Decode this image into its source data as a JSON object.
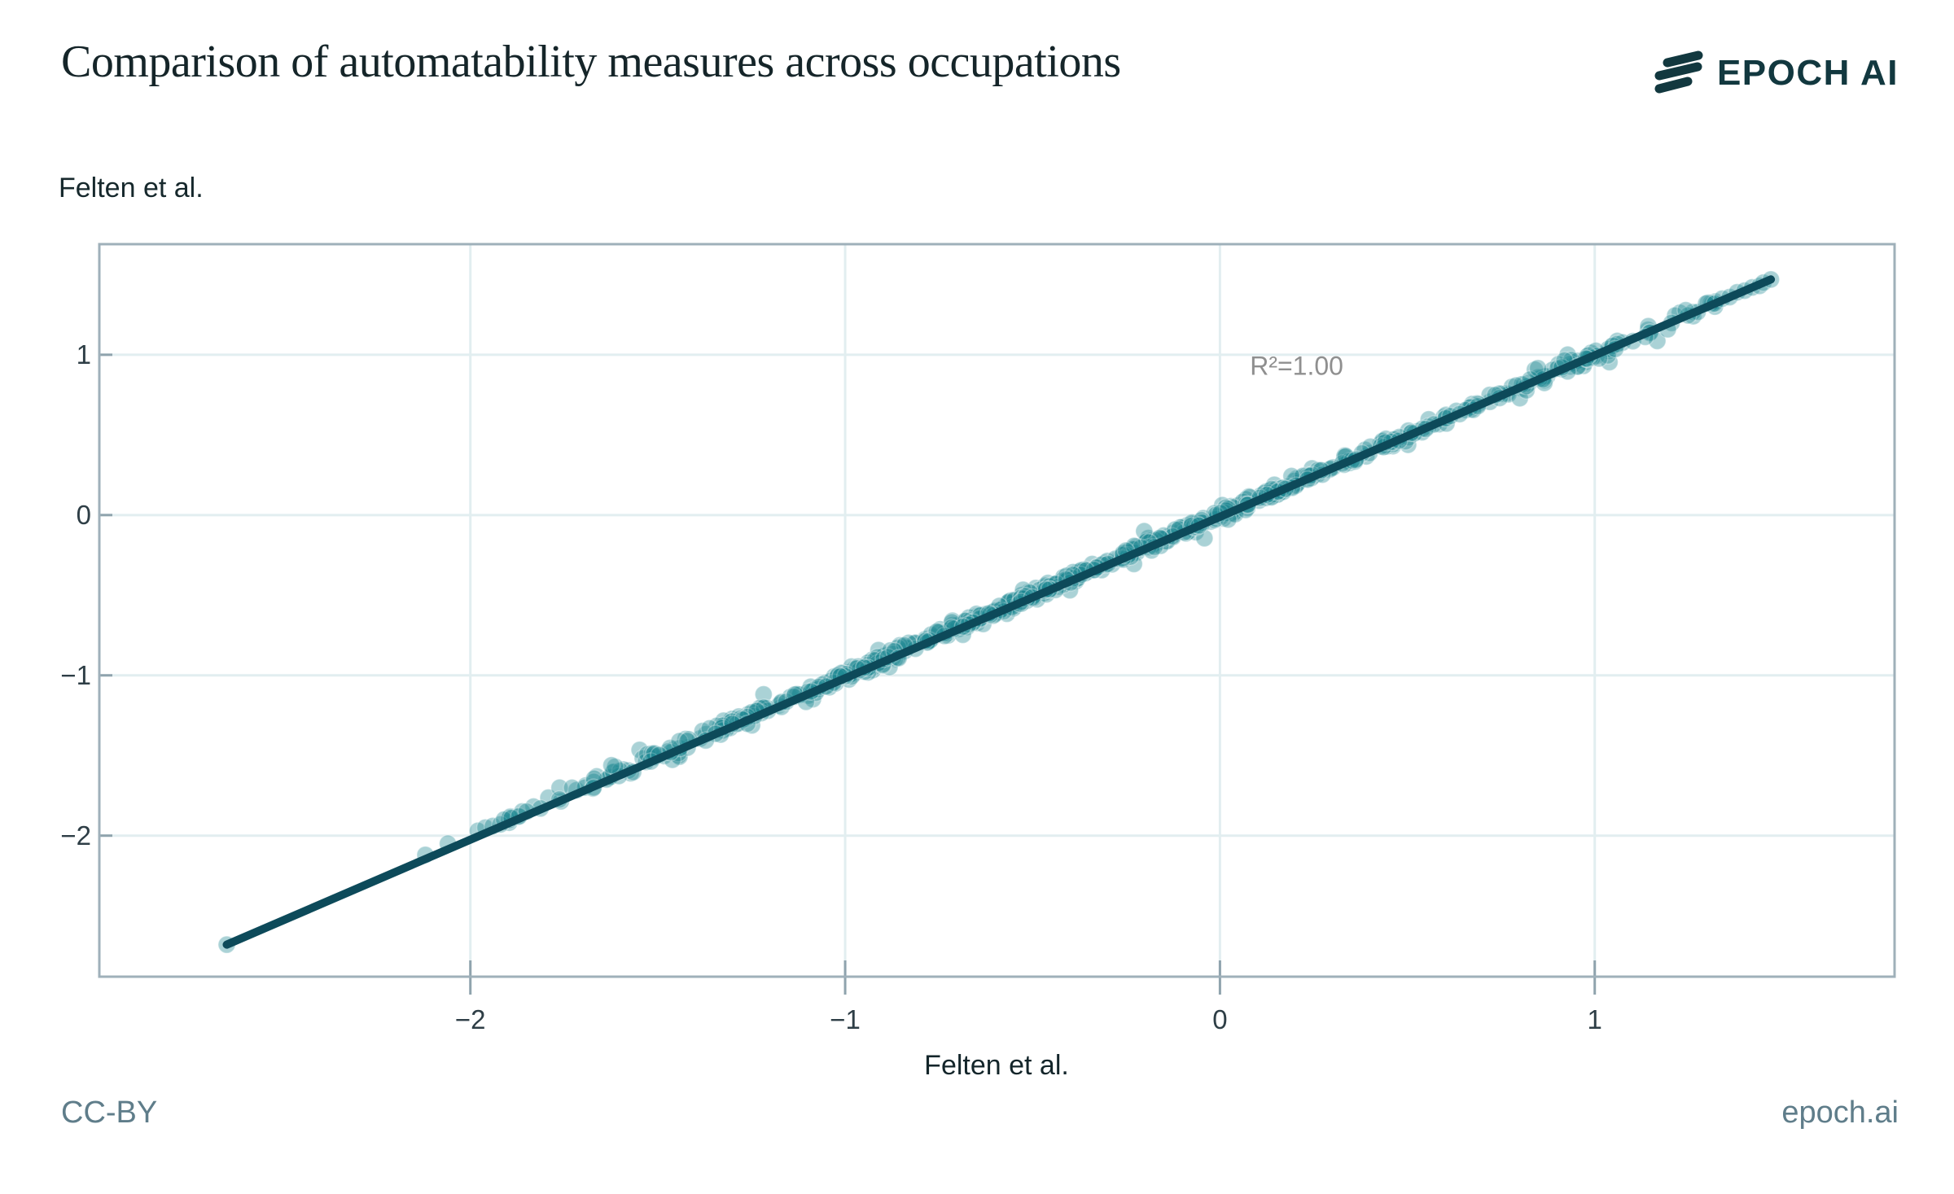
{
  "header": {
    "title": "Comparison of automatability measures across occupations"
  },
  "brand": {
    "wordmark": "EPOCH AI",
    "logo_icon": "epoch-logo-three-slashes",
    "color": "#12383f"
  },
  "footer": {
    "license": "CC-BY",
    "site": "epoch.ai"
  },
  "chart_data": {
    "type": "scatter",
    "title": "Comparison of automatability measures across occupations",
    "xlabel": "Felten et al.",
    "ylabel": "Felten et al.",
    "annotation": {
      "text": "R²=1.00",
      "x": 0.08,
      "y": 0.93
    },
    "relationship": "identity line y = x, R² = 1.00",
    "xlim": [
      -2.99,
      1.8
    ],
    "ylim": [
      -2.88,
      1.69
    ],
    "x_ticks": [
      {
        "value": -2,
        "label": "−2"
      },
      {
        "value": -1,
        "label": "−1"
      },
      {
        "value": 0,
        "label": "0"
      },
      {
        "value": 1,
        "label": "1"
      }
    ],
    "y_ticks": [
      {
        "value": 1,
        "label": "1"
      },
      {
        "value": 0,
        "label": "0"
      },
      {
        "value": -1,
        "label": "−1"
      },
      {
        "value": -2,
        "label": "−2"
      }
    ],
    "grid": true,
    "fit_line": {
      "x1": -2.65,
      "y1": -2.68,
      "x2": 1.47,
      "y2": 1.47
    },
    "explicit_points": [
      [
        -2.65,
        -2.68
      ],
      [
        -2.12,
        -2.12
      ],
      [
        -2.06,
        -2.05
      ],
      [
        -1.98,
        -1.97
      ],
      [
        -1.96,
        -1.95
      ],
      [
        -1.94,
        -1.94
      ],
      [
        -1.92,
        -1.93
      ],
      [
        -1.91,
        -1.9
      ],
      [
        -1.89,
        -1.89
      ],
      [
        -1.87,
        -1.88
      ],
      [
        -1.85,
        -1.85
      ],
      [
        1.32,
        1.32
      ],
      [
        1.34,
        1.35
      ],
      [
        1.36,
        1.36
      ],
      [
        1.38,
        1.39
      ],
      [
        1.4,
        1.4
      ],
      [
        1.42,
        1.42
      ],
      [
        1.44,
        1.43
      ],
      [
        1.45,
        1.45
      ],
      [
        1.47,
        1.47
      ]
    ],
    "cloud": {
      "count": 720,
      "x_min": -1.9,
      "x_max": 1.33,
      "center": -0.35,
      "sd": 0.85,
      "jitter_sd": 0.018,
      "stray_fraction": 0.15,
      "stray_jitter_sd": 0.042,
      "seed": 42
    },
    "marker_radius_px": 10.5,
    "colors": {
      "point": "#1f8894",
      "point_opacity": 0.38,
      "point_rim": "rgba(255,255,255,0.30)",
      "line": "#0d4a5a",
      "grid": "#e2eef0",
      "axis": "#9fb0ba",
      "tick_mark": "#8fa3ad",
      "tick_text": "#2e3e46",
      "annotation_text": "#8f8f8f"
    }
  }
}
